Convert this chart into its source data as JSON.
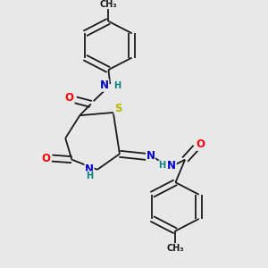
{
  "bg_color": "#e8e8e8",
  "bond_color": "#1a1a1a",
  "atom_colors": {
    "O": "#ff0000",
    "N": "#0000cd",
    "S": "#b8b800",
    "H": "#008080",
    "C": "#1a1a1a"
  },
  "font_size_atom": 8.5,
  "font_size_small": 7.0,
  "lw": 1.3
}
